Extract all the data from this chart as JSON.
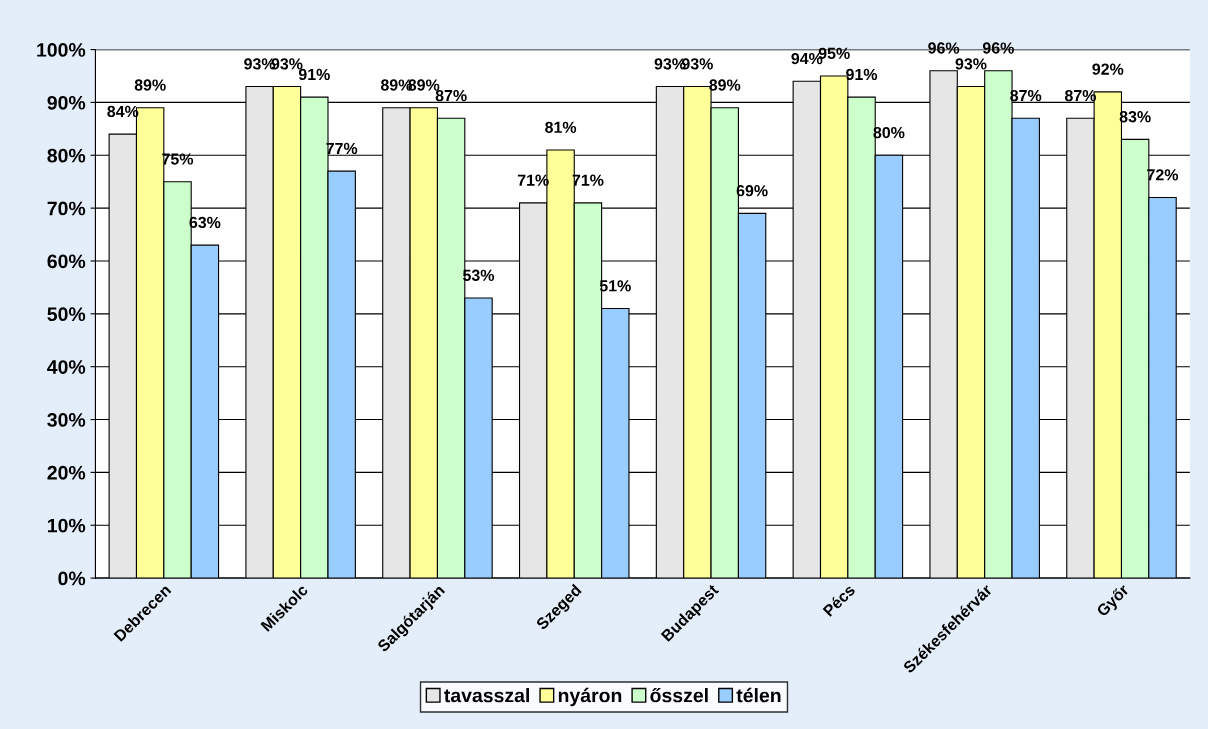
{
  "chart_data": {
    "type": "bar",
    "categories": [
      "Debrecen",
      "Miskolc",
      "Salgótarján",
      "Szeged",
      "Budapest",
      "Pécs",
      "Székesfehérvár",
      "Győr"
    ],
    "series": [
      {
        "name": "tavasszal",
        "color": "#e6e6e6",
        "values": [
          84,
          93,
          89,
          71,
          93,
          94,
          96,
          87
        ],
        "value_labels": [
          "84%",
          "93%",
          "89%",
          "71%",
          "93%",
          "94%",
          "96%",
          "87%"
        ]
      },
      {
        "name": "nyáron",
        "color": "#ffff99",
        "values": [
          89,
          93,
          89,
          81,
          93,
          95,
          93,
          92
        ],
        "value_labels": [
          "89%",
          "93%",
          "89%",
          "81%",
          "93%",
          "95%",
          "93%",
          "92%"
        ]
      },
      {
        "name": "ősszel",
        "color": "#ccffcc",
        "values": [
          75,
          91,
          87,
          71,
          89,
          91,
          96,
          83
        ],
        "value_labels": [
          "75%",
          "91%",
          "87%",
          "71%",
          "89%",
          "91%",
          "96%",
          "83%"
        ]
      },
      {
        "name": "télen",
        "color": "#99ccff",
        "values": [
          63,
          77,
          53,
          51,
          69,
          80,
          87,
          72
        ],
        "value_labels": [
          "63%",
          "77%",
          "53%",
          "51%",
          "69%",
          "80%",
          "87%",
          "72%"
        ]
      }
    ],
    "ylim": [
      0,
      100
    ],
    "yticks": [
      {
        "value": 0,
        "label": "0%"
      },
      {
        "value": 10,
        "label": "10%"
      },
      {
        "value": 20,
        "label": "20%"
      },
      {
        "value": 30,
        "label": "30%"
      },
      {
        "value": 40,
        "label": "40%"
      },
      {
        "value": 50,
        "label": "50%"
      },
      {
        "value": 60,
        "label": "60%"
      },
      {
        "value": 70,
        "label": "70%"
      },
      {
        "value": 80,
        "label": "80%"
      },
      {
        "value": 90,
        "label": "90%"
      },
      {
        "value": 100,
        "label": "100%"
      }
    ],
    "grid": "y",
    "legend": "bottom"
  }
}
